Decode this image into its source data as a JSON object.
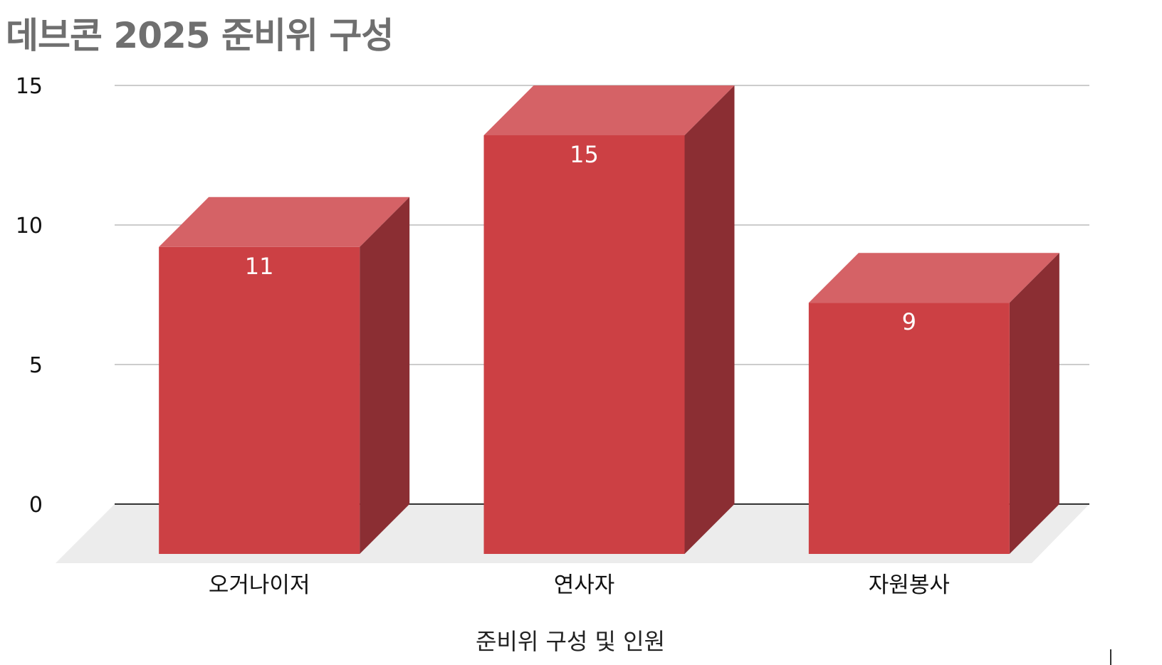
{
  "chart_data": {
    "type": "bar",
    "style": "3d",
    "title": "데브콘 2025 준비위 구성",
    "xlabel": "준비위 구성 및 인원",
    "ylabel": "",
    "categories": [
      "오거나이저",
      "연사자",
      "자원봉사"
    ],
    "values": [
      11,
      15,
      9
    ],
    "ylim": [
      0,
      15
    ],
    "yticks": [
      0,
      5,
      10,
      15
    ],
    "grid": true,
    "data_labels": true,
    "colors": {
      "bar_front": "#cc4044",
      "bar_top": "#d56266",
      "bar_side": "#8b2e33",
      "floor": "#ececec",
      "gridline": "#cccccc",
      "axis_line": "#333333",
      "title": "#6f6f6f"
    }
  }
}
